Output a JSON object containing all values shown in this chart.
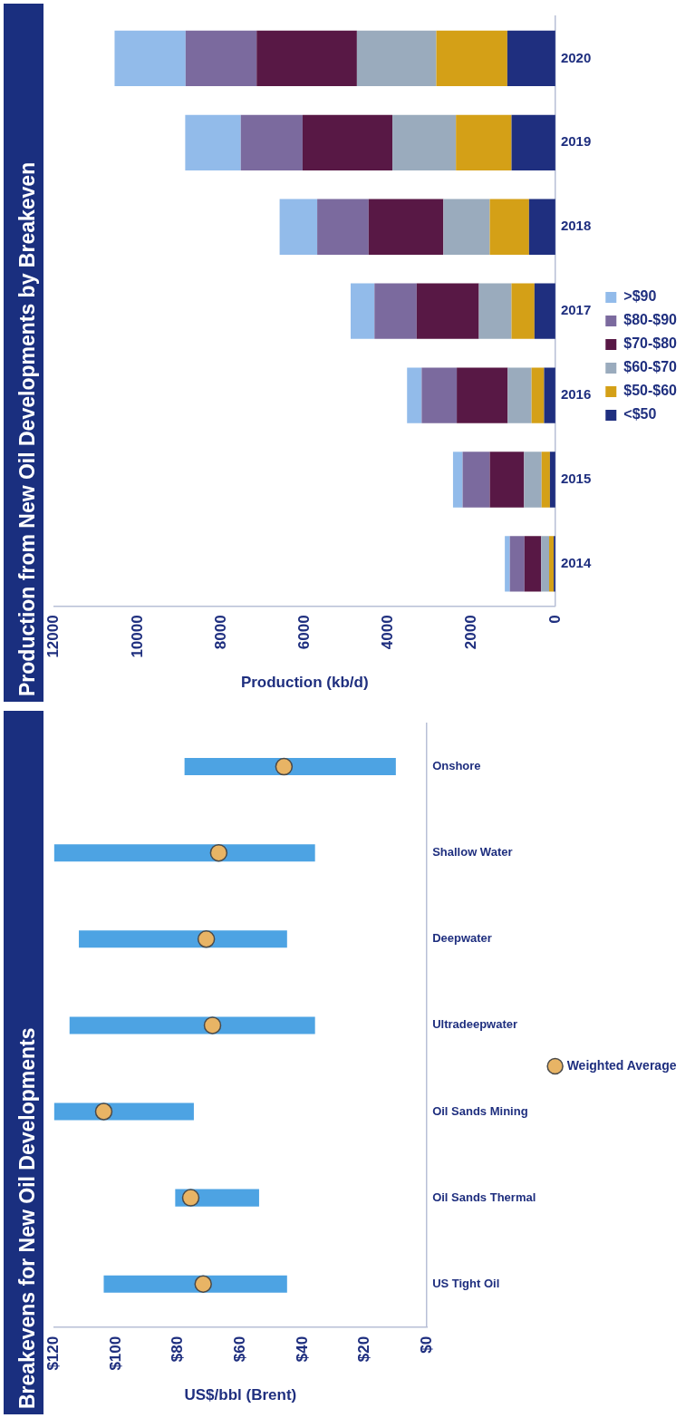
{
  "chart_data": [
    {
      "type": "bar",
      "title": "Production from New Oil Developments by Breakeven",
      "xlabel": "Production (kb/d)",
      "orientation": "horizontal",
      "stacked": true,
      "legend": "right",
      "categories": [
        "2020",
        "2019",
        "2018",
        "2017",
        "2016",
        "2015",
        "2014"
      ],
      "xlim": [
        12000,
        0
      ],
      "xticks": [
        0,
        2000,
        4000,
        6000,
        8000,
        10000,
        12000
      ],
      "series": [
        {
          "name": "<$50",
          "color": "#1f2f7f",
          "values": [
            1150,
            1050,
            630,
            500,
            270,
            130,
            40
          ]
        },
        {
          "name": "$50-$60",
          "color": "#d4a017",
          "values": [
            1700,
            1330,
            940,
            550,
            300,
            200,
            110
          ]
        },
        {
          "name": "$60-$70",
          "color": "#9aabbd",
          "values": [
            1900,
            1520,
            1110,
            780,
            570,
            420,
            190
          ]
        },
        {
          "name": "$70-$80",
          "color": "#581845",
          "values": [
            2400,
            2150,
            1790,
            1490,
            1220,
            820,
            400
          ]
        },
        {
          "name": "$80-$90",
          "color": "#7b6a9e",
          "values": [
            1700,
            1480,
            1230,
            1010,
            840,
            650,
            350
          ]
        },
        {
          "name": ">$90",
          "color": "#92bbea",
          "values": [
            1700,
            1330,
            900,
            570,
            350,
            230,
            120
          ]
        }
      ]
    },
    {
      "type": "bar",
      "title": "Breakevens for New Oil Developments",
      "xlabel": "US$/bbl (Brent)",
      "orientation": "horizontal",
      "legend": "right",
      "categories": [
        "Onshore",
        "Shallow Water",
        "Deepwater",
        "Ultradeepwater",
        "Oil Sands Mining",
        "Oil Sands Thermal",
        "US Tight Oil"
      ],
      "xlim": [
        120,
        0
      ],
      "xticks": [
        {
          "value": 0,
          "label": "$0"
        },
        {
          "value": 20,
          "label": "$20"
        },
        {
          "value": 40,
          "label": "$40"
        },
        {
          "value": 60,
          "label": "$60"
        },
        {
          "value": 80,
          "label": "$80"
        },
        {
          "value": 100,
          "label": "$100"
        },
        {
          "value": 120,
          "label": "$120"
        }
      ],
      "series": [
        {
          "type": "bar",
          "color": "#4da3e3",
          "base": [
            10,
            36,
            45,
            36,
            75,
            54,
            45
          ],
          "values": [
            68,
            84,
            67,
            79,
            45,
            27,
            59
          ]
        },
        {
          "type": "scatter",
          "name": "Weighted Average",
          "color": "#e8b465",
          "marker": "circle",
          "x": [
            "Onshore",
            "Shallow Water",
            "Deepwater",
            "Ultradeepwater",
            "Oil Sands Mining",
            "Oil Sands Thermal",
            "US Tight Oil"
          ],
          "values": [
            46,
            67,
            71,
            69,
            104,
            76,
            72
          ]
        }
      ]
    }
  ]
}
